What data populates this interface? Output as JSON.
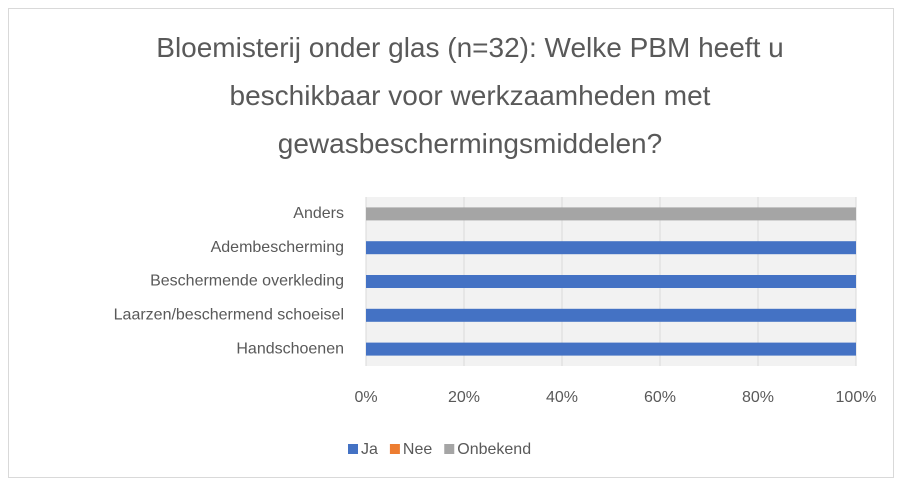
{
  "chart_data": {
    "type": "stacked_bar_horizontal",
    "title": "Bloemisterij onder glas (n=32): Welke PBM heeft u beschikbaar voor werkzaamheden met gewasbeschermingsmiddelen?",
    "categories": [
      "Anders",
      "Adembescherming",
      "Beschermende overkleding",
      "Laarzen/beschermend schoeisel",
      "Handschoenen"
    ],
    "series": [
      {
        "name": "Ja",
        "color": "#4472c4",
        "values": [
          0,
          100,
          100,
          100,
          100
        ]
      },
      {
        "name": "Nee",
        "color": "#ed7d31",
        "values": [
          0,
          0,
          0,
          0,
          0
        ]
      },
      {
        "name": "Onbekend",
        "color": "#a5a5a5",
        "values": [
          100,
          0,
          0,
          0,
          0
        ]
      }
    ],
    "xlim": [
      0,
      100
    ],
    "xticks": [
      {
        "value": 0,
        "label": "0%"
      },
      {
        "value": 20,
        "label": "20%"
      },
      {
        "value": 40,
        "label": "40%"
      },
      {
        "value": 60,
        "label": "60%"
      },
      {
        "value": 80,
        "label": "80%"
      },
      {
        "value": 100,
        "label": "100%"
      }
    ],
    "grid": true,
    "legend": "bottom"
  }
}
